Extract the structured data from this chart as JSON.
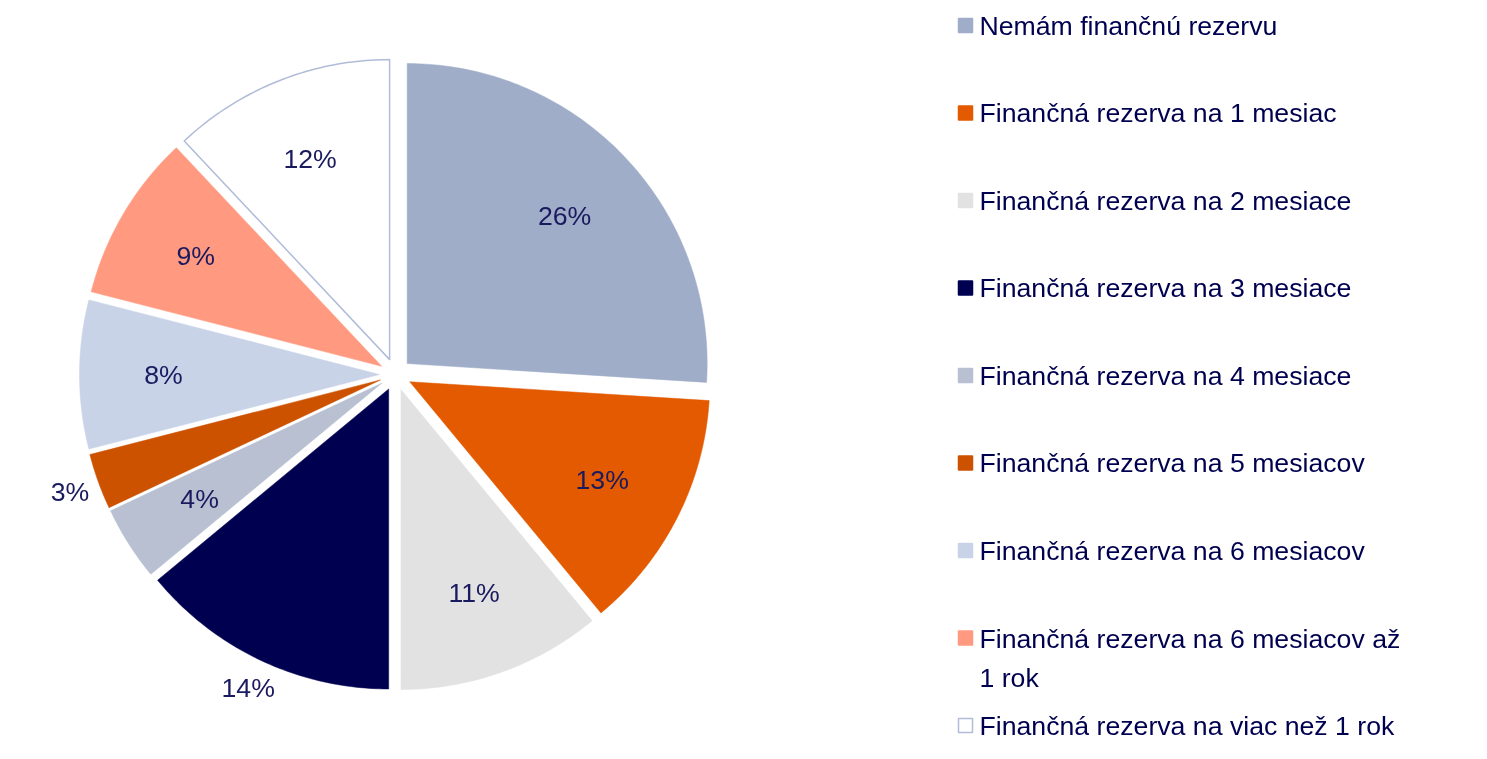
{
  "chart_data": {
    "type": "pie",
    "categories": [
      "Nemám finančnú rezervu",
      "Finančná rezerva na 1 mesiac",
      "Finančná rezerva na 2 mesiace",
      "Finančná rezerva na 3 mesiace",
      "Finančná rezerva na 4 mesiace",
      "Finančná rezerva na 5 mesiacov",
      "Finančná rezerva na 6 mesiacov",
      "Finančná rezerva na 6 mesiacov až 1 rok",
      "Finančná rezerva na viac než 1 rok"
    ],
    "values": [
      26,
      13,
      11,
      14,
      4,
      3,
      8,
      9,
      12
    ],
    "colors": [
      "#9fadc8",
      "#e35a00",
      "#e2e2e2",
      "#000050",
      "#b8c0d2",
      "#cc5200",
      "#c8d3e8",
      "#ff9a80",
      "#ffffff"
    ],
    "value_labels": [
      "26%",
      "13%",
      "11%",
      "14%",
      "4%",
      "3%",
      "8%",
      "9%",
      "12%"
    ],
    "legend": "right"
  }
}
